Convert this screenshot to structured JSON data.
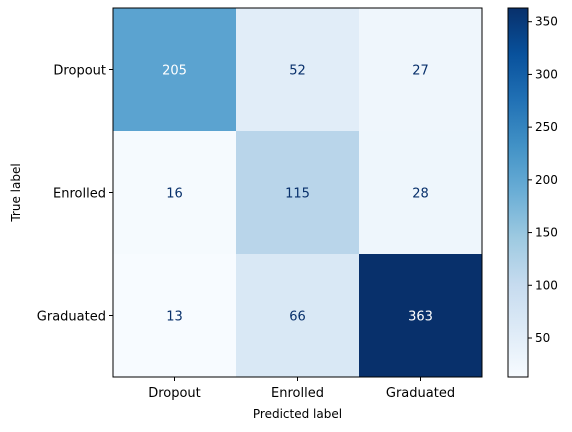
{
  "chart_data": {
    "type": "heatmap",
    "title": "",
    "xlabel": "Predicted label",
    "ylabel": "True label",
    "x_categories": [
      "Dropout",
      "Enrolled",
      "Graduated"
    ],
    "y_categories": [
      "Dropout",
      "Enrolled",
      "Graduated"
    ],
    "values": [
      [
        205,
        52,
        27
      ],
      [
        16,
        115,
        28
      ],
      [
        13,
        66,
        363
      ]
    ],
    "colormap": "Blues",
    "colorbar": {
      "min": 13,
      "max": 363,
      "ticks": [
        50,
        100,
        150,
        200,
        250,
        300,
        350
      ]
    },
    "colors": {
      "low": "#f7fbff",
      "high": "#08306b",
      "text_light": "#ffffff",
      "text_dark": "#08306b"
    }
  }
}
